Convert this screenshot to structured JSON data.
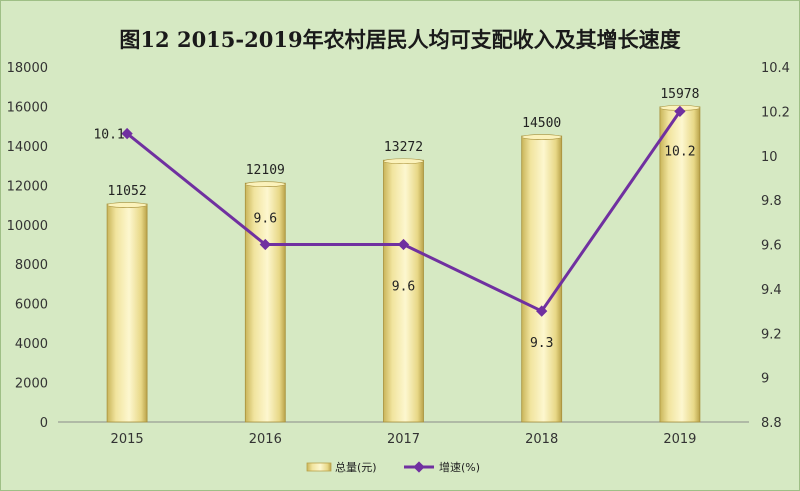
{
  "chart_data": {
    "type": "bar+line",
    "title": "图12  2015-2019年农村居民人均可支配收入及其增长速度",
    "categories": [
      "2015",
      "2016",
      "2017",
      "2018",
      "2019"
    ],
    "series": [
      {
        "name": "总量(元)",
        "type": "bar",
        "axis": "left",
        "values": [
          11052,
          12109,
          13272,
          14500,
          15978
        ],
        "labels": [
          "11052",
          "12109",
          "13272",
          "14500",
          "15978"
        ]
      },
      {
        "name": "增速(%)",
        "type": "line",
        "axis": "right",
        "values": [
          10.1,
          9.6,
          9.6,
          9.3,
          10.2
        ],
        "labels": [
          "10.1",
          "9.6",
          "9.6",
          "9.3",
          "10.2"
        ]
      }
    ],
    "y_left": {
      "min": 0,
      "max": 18000,
      "ticks": [
        "0",
        "2000",
        "4000",
        "6000",
        "8000",
        "10000",
        "12000",
        "14000",
        "16000",
        "18000"
      ]
    },
    "y_right": {
      "min": 8.8,
      "max": 10.4,
      "ticks": [
        "8.8",
        "9",
        "9.2",
        "9.4",
        "9.6",
        "9.8",
        "10",
        "10.2",
        "10.4"
      ]
    },
    "grid": false,
    "legend_position": "bottom",
    "colors": {
      "background": "#d6e9c3",
      "bar_fill": "#f2e6a0",
      "bar_edge": "#b9a24a",
      "line": "#7030a0",
      "axis": "#8a8a8a"
    }
  }
}
